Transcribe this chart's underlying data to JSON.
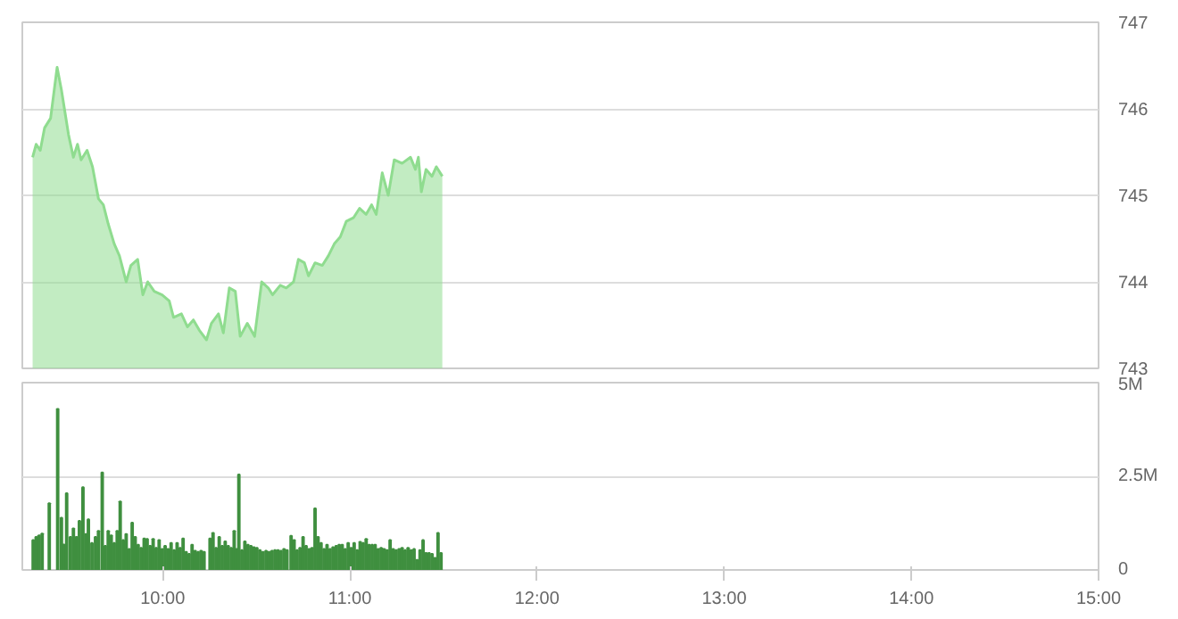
{
  "chart_data": [
    {
      "type": "area",
      "xlim": [
        9.25,
        15
      ],
      "ylim": [
        743,
        747
      ],
      "yticks": [
        743,
        744,
        745,
        746,
        747
      ],
      "tick_labels": "y",
      "grid": "y",
      "series": [
        {
          "color": "#8fdc8f",
          "x": [
            9.305,
            9.324,
            9.346,
            9.369,
            9.401,
            9.436,
            9.459,
            9.497,
            9.523,
            9.545,
            9.564,
            9.596,
            9.625,
            9.657,
            9.683,
            9.709,
            9.741,
            9.769,
            9.805,
            9.83,
            9.866,
            9.894,
            9.92,
            9.955,
            9.997,
            10.035,
            10.058,
            10.1,
            10.132,
            10.164,
            10.196,
            10.234,
            10.26,
            10.298,
            10.324,
            10.356,
            10.388,
            10.414,
            10.452,
            10.491,
            10.529,
            10.564,
            10.587,
            10.628,
            10.66,
            10.699,
            10.725,
            10.757,
            10.779,
            10.814,
            10.853,
            10.885,
            10.917,
            10.949,
            10.981,
            11.019,
            11.052,
            11.087,
            11.116,
            11.141,
            11.173,
            11.205,
            11.237,
            11.279,
            11.324,
            11.35,
            11.366,
            11.382,
            11.407,
            11.439,
            11.462,
            11.494
          ],
          "values": [
            745.44,
            745.59,
            745.52,
            745.78,
            745.89,
            746.48,
            746.22,
            745.7,
            745.44,
            745.59,
            745.41,
            745.52,
            745.33,
            744.96,
            744.89,
            744.67,
            744.44,
            744.3,
            744.0,
            744.19,
            744.26,
            743.85,
            744.0,
            743.89,
            743.85,
            743.78,
            743.59,
            743.63,
            743.48,
            743.56,
            743.44,
            743.33,
            743.52,
            743.63,
            743.41,
            743.93,
            743.89,
            743.37,
            743.52,
            743.37,
            744.0,
            743.93,
            743.85,
            743.96,
            743.93,
            744.0,
            744.26,
            744.22,
            744.07,
            744.22,
            744.19,
            744.3,
            744.44,
            744.52,
            744.7,
            744.74,
            744.85,
            744.78,
            744.89,
            744.78,
            745.26,
            745.0,
            745.41,
            745.37,
            745.44,
            745.3,
            745.44,
            745.04,
            745.3,
            745.22,
            745.33,
            745.22
          ]
        }
      ]
    },
    {
      "type": "bar",
      "xlim": [
        9.25,
        15
      ],
      "ylim": [
        0,
        5
      ],
      "yticks": [
        0,
        {
          "value": 2.5,
          "label": "2.5M"
        },
        {
          "value": 5,
          "label": "5M"
        }
      ],
      "xticks": [
        {
          "value": 10,
          "label": "10:00"
        },
        {
          "value": 11,
          "label": "11:00"
        },
        {
          "value": 12,
          "label": "12:00"
        },
        {
          "value": 13,
          "label": "13:00"
        },
        {
          "value": 14,
          "label": "14:00"
        },
        {
          "value": 15,
          "label": "15:00"
        }
      ],
      "grid": "y",
      "series": [
        {
          "color": "#3f8f3f",
          "x": [
            9.308,
            9.324,
            9.34,
            9.356,
            9.394,
            9.439,
            9.459,
            9.471,
            9.487,
            9.507,
            9.523,
            9.539,
            9.555,
            9.574,
            9.59,
            9.603,
            9.622,
            9.641,
            9.657,
            9.677,
            9.693,
            9.709,
            9.725,
            9.741,
            9.757,
            9.773,
            9.789,
            9.805,
            9.821,
            9.837,
            9.853,
            9.869,
            9.885,
            9.901,
            9.917,
            9.933,
            9.949,
            9.965,
            9.981,
            9.997,
            10.013,
            10.029,
            10.045,
            10.061,
            10.077,
            10.093,
            10.109,
            10.125,
            10.141,
            10.157,
            10.173,
            10.189,
            10.205,
            10.221,
            10.253,
            10.269,
            10.285,
            10.302,
            10.318,
            10.334,
            10.35,
            10.366,
            10.382,
            10.394,
            10.407,
            10.423,
            10.439,
            10.455,
            10.471,
            10.487,
            10.503,
            10.519,
            10.535,
            10.552,
            10.568,
            10.584,
            10.6,
            10.616,
            10.632,
            10.648,
            10.664,
            10.686,
            10.702,
            10.718,
            10.734,
            10.75,
            10.766,
            10.782,
            10.798,
            10.814,
            10.83,
            10.846,
            10.862,
            10.878,
            10.894,
            10.91,
            10.927,
            10.943,
            10.959,
            10.975,
            10.991,
            11.007,
            11.023,
            11.039,
            11.055,
            11.071,
            11.087,
            11.103,
            11.119,
            11.135,
            11.151,
            11.167,
            11.183,
            11.199,
            11.215,
            11.231,
            11.247,
            11.263,
            11.279,
            11.295,
            11.311,
            11.327,
            11.343,
            11.359,
            11.375,
            11.391,
            11.407,
            11.423,
            11.439,
            11.455,
            11.471,
            11.487
          ],
          "values": [
            0.8,
            0.88,
            0.92,
            0.97,
            1.78,
            4.3,
            1.39,
            0.68,
            2.05,
            0.88,
            1.11,
            0.88,
            1.31,
            2.21,
            0.96,
            1.35,
            0.72,
            0.88,
            1.04,
            2.6,
            0.64,
            1.04,
            0.92,
            0.72,
            1.04,
            1.83,
            0.8,
            0.96,
            0.56,
            1.26,
            0.88,
            0.67,
            0.59,
            0.84,
            0.83,
            0.64,
            0.83,
            0.59,
            0.8,
            0.56,
            0.64,
            0.56,
            0.72,
            0.53,
            0.72,
            0.59,
            0.84,
            0.48,
            0.43,
            0.67,
            0.51,
            0.48,
            0.51,
            0.48,
            0.84,
            0.99,
            0.59,
            0.88,
            0.64,
            0.76,
            0.64,
            0.59,
            1.04,
            0.56,
            2.55,
            0.53,
            0.76,
            0.67,
            0.64,
            0.61,
            0.59,
            0.53,
            0.48,
            0.51,
            0.48,
            0.51,
            0.53,
            0.53,
            0.51,
            0.56,
            0.53,
            0.91,
            0.8,
            0.53,
            0.59,
            0.88,
            0.64,
            0.56,
            0.59,
            1.64,
            0.88,
            0.72,
            0.56,
            0.67,
            0.56,
            0.61,
            0.64,
            0.67,
            0.67,
            0.56,
            0.72,
            0.59,
            0.72,
            0.53,
            0.75,
            0.72,
            0.83,
            0.67,
            0.67,
            0.67,
            0.56,
            0.59,
            0.56,
            0.53,
            0.8,
            0.56,
            0.53,
            0.56,
            0.59,
            0.53,
            0.59,
            0.53,
            0.56,
            0.27,
            0.53,
            0.8,
            0.45,
            0.45,
            0.43,
            0.32,
            0.99,
            0.45
          ]
        }
      ]
    }
  ]
}
